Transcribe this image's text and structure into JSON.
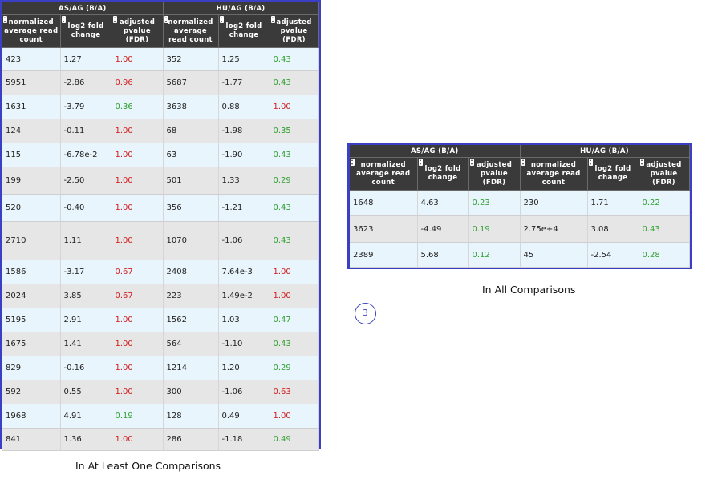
{
  "headers": {
    "group_a": "AS/AG (B/A)",
    "group_b": "HU/AG (B/A)",
    "left_cols": [
      "normalized average read count",
      "log2 fold change",
      "adjusted pvalue (FDR)"
    ],
    "right_cols": [
      "normalized average read count",
      "log2 fold change",
      "adjusted pvalue (FDR)"
    ]
  },
  "colors": {
    "significant": "#2ea02e",
    "not_significant": "#d31b1b",
    "border": "#3b3fc4",
    "header_bg": "#3a3a3a"
  },
  "icon": "sort-arrows-icon",
  "left_table": {
    "caption": "In At Least One Comparisons",
    "rows": [
      [
        "423",
        "1.27",
        "1.00",
        "352",
        "1.25",
        "0.43"
      ],
      [
        "5951",
        "-2.86",
        "0.96",
        "5687",
        "-1.77",
        "0.43"
      ],
      [
        "1631",
        "-3.79",
        "0.36",
        "3638",
        "0.88",
        "1.00"
      ],
      [
        "124",
        "-0.11",
        "1.00",
        "68",
        "-1.98",
        "0.35"
      ],
      [
        "115",
        "-6.78e-2",
        "1.00",
        "63",
        "-1.90",
        "0.43"
      ],
      [
        "199",
        "-2.50",
        "1.00",
        "501",
        "1.33",
        "0.29"
      ],
      [
        "520",
        "-0.40",
        "1.00",
        "356",
        "-1.21",
        "0.43"
      ],
      [
        "2710",
        "1.11",
        "1.00",
        "1070",
        "-1.06",
        "0.43"
      ],
      [
        "1586",
        "-3.17",
        "0.67",
        "2408",
        "7.64e-3",
        "1.00"
      ],
      [
        "2024",
        "3.85",
        "0.67",
        "223",
        "1.49e-2",
        "1.00"
      ],
      [
        "5195",
        "2.91",
        "1.00",
        "1562",
        "1.03",
        "0.47"
      ],
      [
        "1675",
        "1.41",
        "1.00",
        "564",
        "-1.10",
        "0.43"
      ],
      [
        "829",
        "-0.16",
        "1.00",
        "1214",
        "1.20",
        "0.29"
      ],
      [
        "592",
        "0.55",
        "1.00",
        "300",
        "-1.06",
        "0.63"
      ],
      [
        "1968",
        "4.91",
        "0.19",
        "128",
        "0.49",
        "1.00"
      ],
      [
        "841",
        "1.36",
        "1.00",
        "286",
        "-1.18",
        "0.49"
      ]
    ]
  },
  "right_table": {
    "caption": "In All Comparisons",
    "rows": [
      [
        "1648",
        "4.63",
        "0.23",
        "230",
        "1.71",
        "0.22"
      ],
      [
        "3623",
        "-4.49",
        "0.19",
        "2.75e+4",
        "3.08",
        "0.43"
      ],
      [
        "2389",
        "5.68",
        "0.12",
        "45",
        "-2.54",
        "0.28"
      ]
    ]
  },
  "step_number": "3"
}
